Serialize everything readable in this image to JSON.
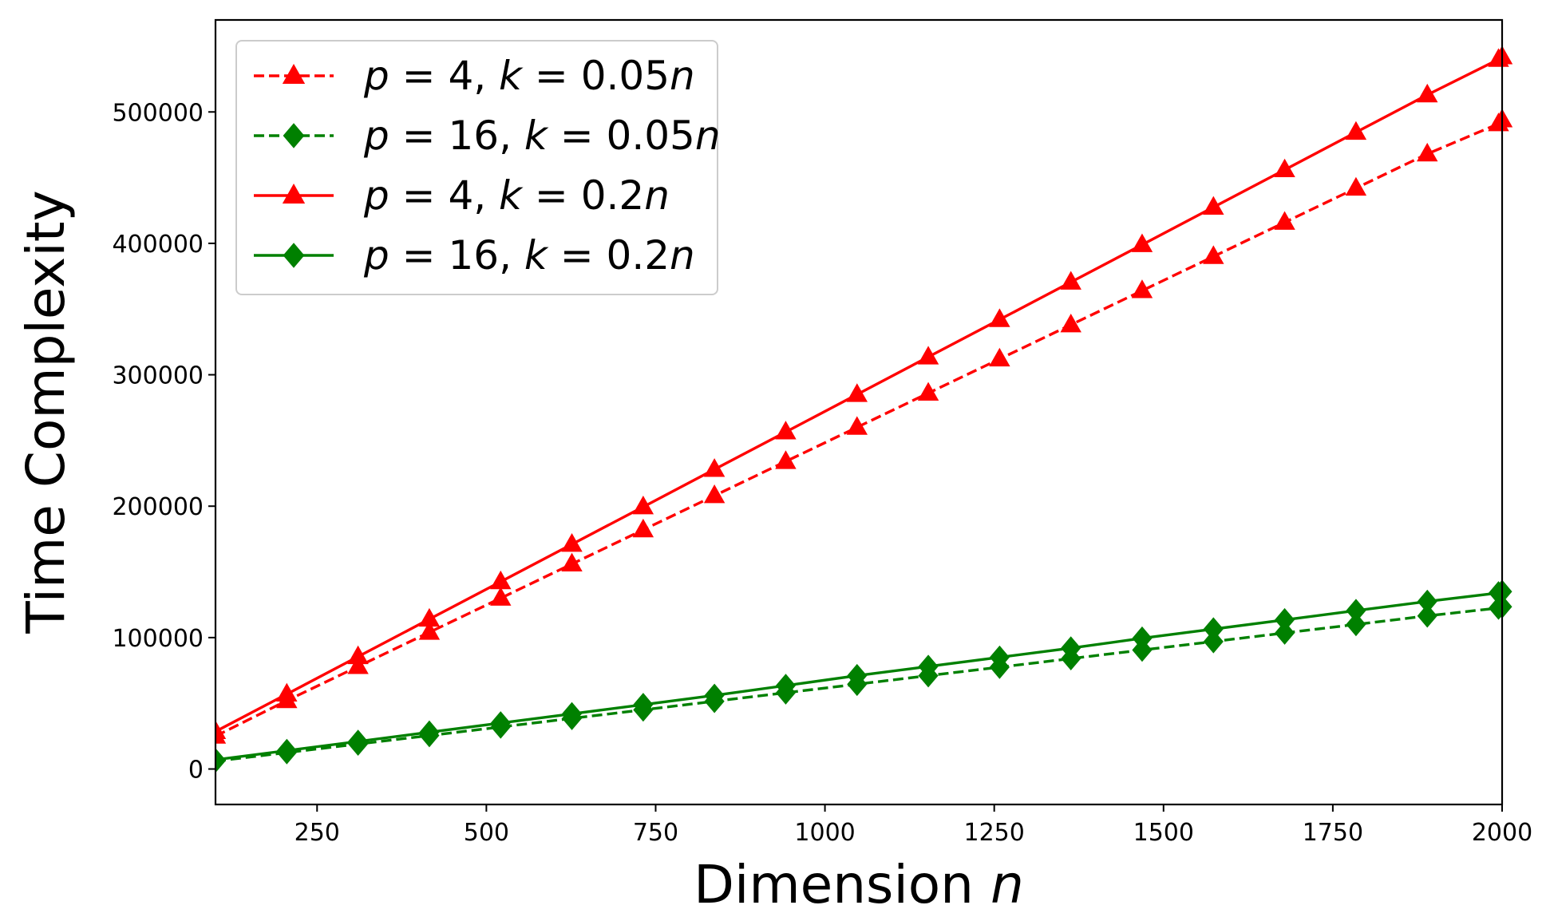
{
  "chart_data": {
    "type": "line",
    "title": "",
    "xlabel": "Dimension",
    "xlabel_var": "n",
    "ylabel": "Time Complexity",
    "xlim": [
      100,
      2000
    ],
    "ylim": [
      -27000,
      570000
    ],
    "x_ticks": [
      250,
      500,
      750,
      1000,
      1250,
      1500,
      1750,
      2000
    ],
    "y_ticks": [
      0,
      100000,
      200000,
      300000,
      400000,
      500000
    ],
    "grid": false,
    "legend_position": "top-left",
    "x": [
      100,
      205.3,
      310.5,
      415.8,
      521.1,
      626.3,
      731.6,
      836.8,
      942.1,
      1047.4,
      1152.6,
      1257.9,
      1363.2,
      1468.4,
      1573.7,
      1678.9,
      1784.2,
      1889.5,
      1994.7,
      2000
    ],
    "series": [
      {
        "name": "p = 4, k = 0.05n",
        "legend": {
          "p": "4",
          "k": "0.05"
        },
        "color": "#ff0000",
        "line_style": "dashed",
        "marker": "triangle",
        "values": [
          25000,
          52000,
          78000,
          104000,
          130000,
          156000,
          182000,
          208000,
          234000,
          260000,
          286000,
          312000,
          338000,
          364000,
          390000,
          416000,
          442000,
          468000,
          491000,
          494000
        ]
      },
      {
        "name": "p = 16, k = 0.05n",
        "legend": {
          "p": "16",
          "k": "0.05"
        },
        "color": "#008000",
        "line_style": "dashed",
        "marker": "diamond",
        "values": [
          6000,
          12500,
          19000,
          25500,
          32000,
          38500,
          45000,
          51500,
          58000,
          64500,
          71000,
          77500,
          84000,
          90500,
          97000,
          103500,
          110000,
          116500,
          122500,
          123500
        ]
      },
      {
        "name": "p = 4, k = 0.2n",
        "legend": {
          "p": "4",
          "k": "0.2"
        },
        "color": "#ff0000",
        "line_style": "solid",
        "marker": "triangle",
        "values": [
          28500,
          57000,
          85500,
          114000,
          142500,
          171000,
          199500,
          228000,
          256500,
          285000,
          313500,
          342000,
          370500,
          399000,
          427500,
          456000,
          484500,
          513000,
          540000,
          542000
        ]
      },
      {
        "name": "p = 16, k = 0.2n",
        "legend": {
          "p": "16",
          "k": "0.2"
        },
        "color": "#008000",
        "line_style": "solid",
        "marker": "diamond",
        "values": [
          7000,
          14000,
          21000,
          28000,
          35000,
          42000,
          49000,
          56000,
          63500,
          71000,
          78000,
          85000,
          92000,
          99500,
          106500,
          113500,
          120500,
          127500,
          134000,
          135000
        ]
      }
    ]
  }
}
